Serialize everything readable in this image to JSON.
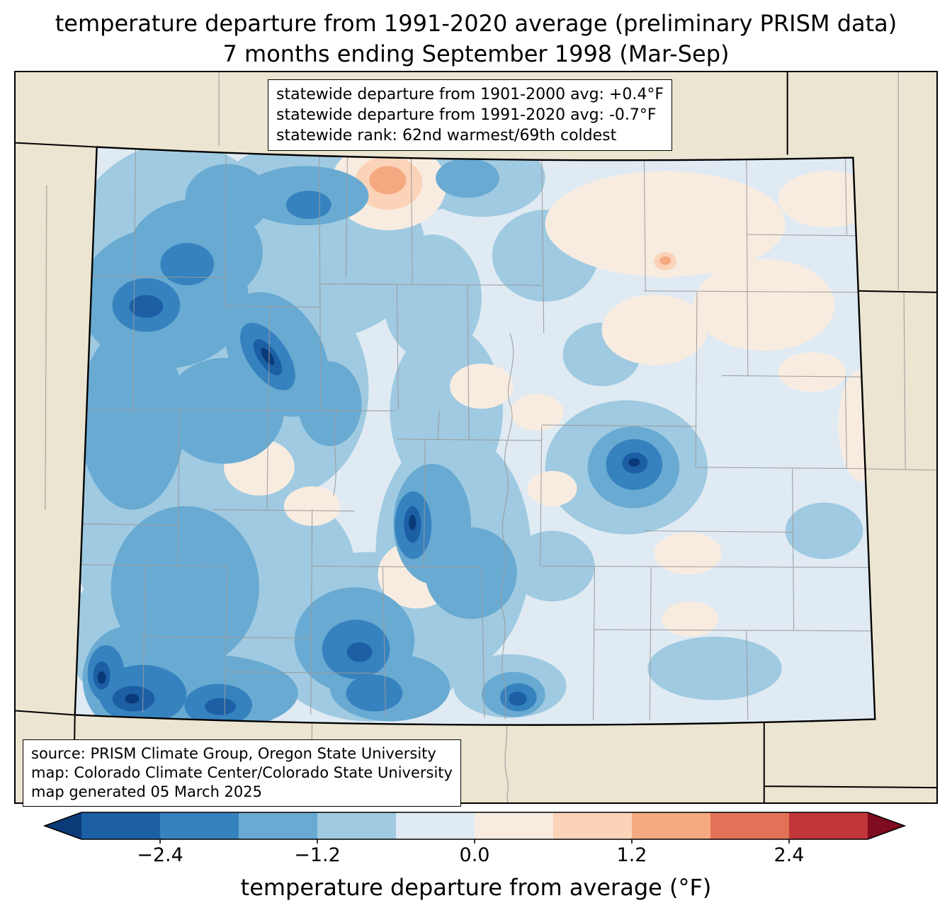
{
  "title": {
    "line1": "temperature departure from 1991-2020 average (preliminary PRISM data)",
    "line2": "7 months ending September 1998 (Mar-Sep)"
  },
  "stats_box": {
    "lines": [
      "statewide departure from 1901-2000 avg: +0.4°F",
      "statewide departure from 1991-2020 avg: -0.7°F",
      "statewide rank: 62nd warmest/69th coldest"
    ]
  },
  "source_box": {
    "lines": [
      "source: PRISM Climate Group, Oregon State University",
      "map: Colorado Climate Center/Colorado State University",
      "map generated 05 March 2025"
    ]
  },
  "colorbar": {
    "label": "temperature departure from average (°F)",
    "min": -3.0,
    "max": 3.0,
    "ticks": [
      {
        "value": -2.4,
        "label": "−2.4"
      },
      {
        "value": -1.2,
        "label": "−1.2"
      },
      {
        "value": 0.0,
        "label": "0.0"
      },
      {
        "value": 1.2,
        "label": "1.2"
      },
      {
        "value": 2.4,
        "label": "2.4"
      }
    ],
    "under_color": "#0a3a78",
    "over_color": "#7f0c20",
    "segment_colors": [
      "#1c5fa5",
      "#3582bf",
      "#69aad2",
      "#9fcae1",
      "#dfeaf3",
      "#f8ece1",
      "#fbd3b8",
      "#f5a981",
      "#e17258",
      "#c13639"
    ]
  },
  "map": {
    "colors": {
      "surround": "#ebe5d1",
      "county_line": "#9a9a9a",
      "state_line": "#000000"
    }
  }
}
